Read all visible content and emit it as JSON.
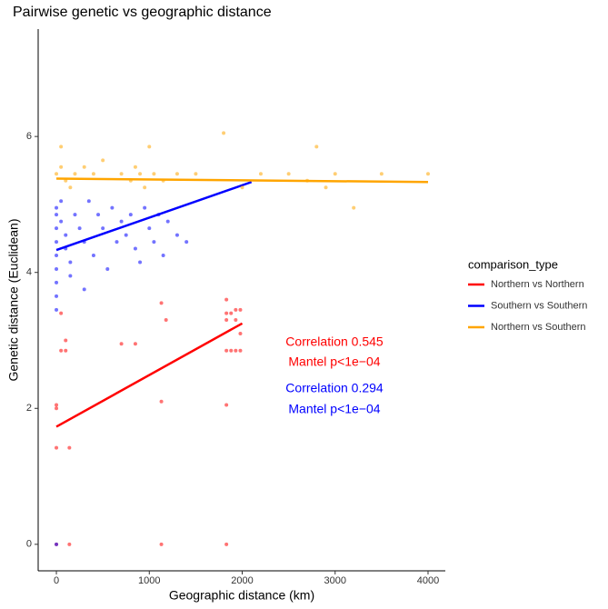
{
  "chart_data": {
    "type": "scatter",
    "title": "Pairwise genetic vs geographic distance",
    "x_label": "Geographic distance (km)",
    "y_label": "Genetic distance (Euclidean)",
    "xlim": [
      -196,
      4186
    ],
    "ylim": [
      -0.39,
      7.58
    ],
    "xticks": [
      0,
      1000,
      2000,
      3000,
      4000
    ],
    "yticks": [
      0,
      2,
      4,
      6
    ],
    "grid": false,
    "legend_title": "comparison_type",
    "legend_position": "right",
    "series": [
      {
        "name": "Northern vs Northern",
        "color": "#ff0000",
        "x": [
          0,
          140,
          1130,
          1830,
          0,
          140,
          0,
          0,
          50,
          100,
          100,
          50,
          700,
          850,
          1130,
          1180,
          1830,
          1830,
          1880,
          1930,
          1980,
          1830,
          1880,
          1930,
          1980,
          1830,
          1930,
          1980,
          1830,
          1130
        ],
        "y": [
          0,
          0,
          0,
          0,
          1.42,
          1.42,
          2.0,
          2.05,
          2.85,
          2.85,
          3.0,
          3.4,
          2.95,
          2.95,
          2.1,
          3.3,
          2.05,
          2.85,
          2.85,
          2.85,
          2.85,
          3.4,
          3.4,
          3.45,
          3.45,
          3.3,
          3.3,
          3.1,
          3.6,
          3.55
        ],
        "fit_x": [
          0,
          2000
        ],
        "fit_y": [
          1.73,
          3.25
        ]
      },
      {
        "name": "Southern vs Southern",
        "color": "#0000ff",
        "x": [
          0,
          0,
          0,
          0,
          0,
          0,
          0,
          0,
          0,
          0,
          50,
          50,
          100,
          100,
          150,
          150,
          200,
          250,
          300,
          300,
          350,
          400,
          450,
          500,
          550,
          600,
          650,
          700,
          750,
          800,
          850,
          900,
          950,
          1000,
          1050,
          1100,
          1150,
          1200,
          1300,
          1400
        ],
        "y": [
          4.95,
          4.85,
          4.65,
          4.45,
          4.25,
          4.05,
          3.85,
          3.65,
          3.45,
          0,
          5.05,
          4.75,
          4.55,
          4.35,
          4.15,
          3.95,
          4.85,
          4.65,
          4.45,
          3.75,
          5.05,
          4.25,
          4.85,
          4.65,
          4.05,
          4.95,
          4.45,
          4.75,
          4.55,
          4.85,
          4.35,
          4.15,
          4.95,
          4.65,
          4.45,
          4.85,
          4.25,
          4.75,
          4.55,
          4.45
        ],
        "fit_x": [
          0,
          2100
        ],
        "fit_y": [
          4.33,
          5.33
        ]
      },
      {
        "name": "Northern vs Southern",
        "color": "#ffa500",
        "x": [
          0,
          50,
          50,
          100,
          150,
          200,
          300,
          400,
          500,
          700,
          800,
          850,
          900,
          950,
          1000,
          1050,
          1150,
          1300,
          1500,
          1800,
          2000,
          2200,
          2500,
          2700,
          2800,
          2900,
          3000,
          3200,
          3500,
          4000
        ],
        "y": [
          5.45,
          5.55,
          5.85,
          5.35,
          5.25,
          5.45,
          5.55,
          5.45,
          5.65,
          5.45,
          5.35,
          5.55,
          5.45,
          5.25,
          5.85,
          5.45,
          5.35,
          5.45,
          5.45,
          6.05,
          5.25,
          5.45,
          5.45,
          5.35,
          5.85,
          5.25,
          5.45,
          4.95,
          5.45,
          5.45
        ],
        "fit_x": [
          0,
          4000
        ],
        "fit_y": [
          5.38,
          5.33
        ]
      }
    ],
    "annotations": [
      {
        "text": "Correlation 0.545",
        "color": "#ff0000"
      },
      {
        "text": "Mantel p<1e−04",
        "color": "#ff0000"
      },
      {
        "text": "Correlation 0.294",
        "color": "#0000ff"
      },
      {
        "text": "Mantel p<1e−04",
        "color": "#0000ff"
      }
    ]
  }
}
